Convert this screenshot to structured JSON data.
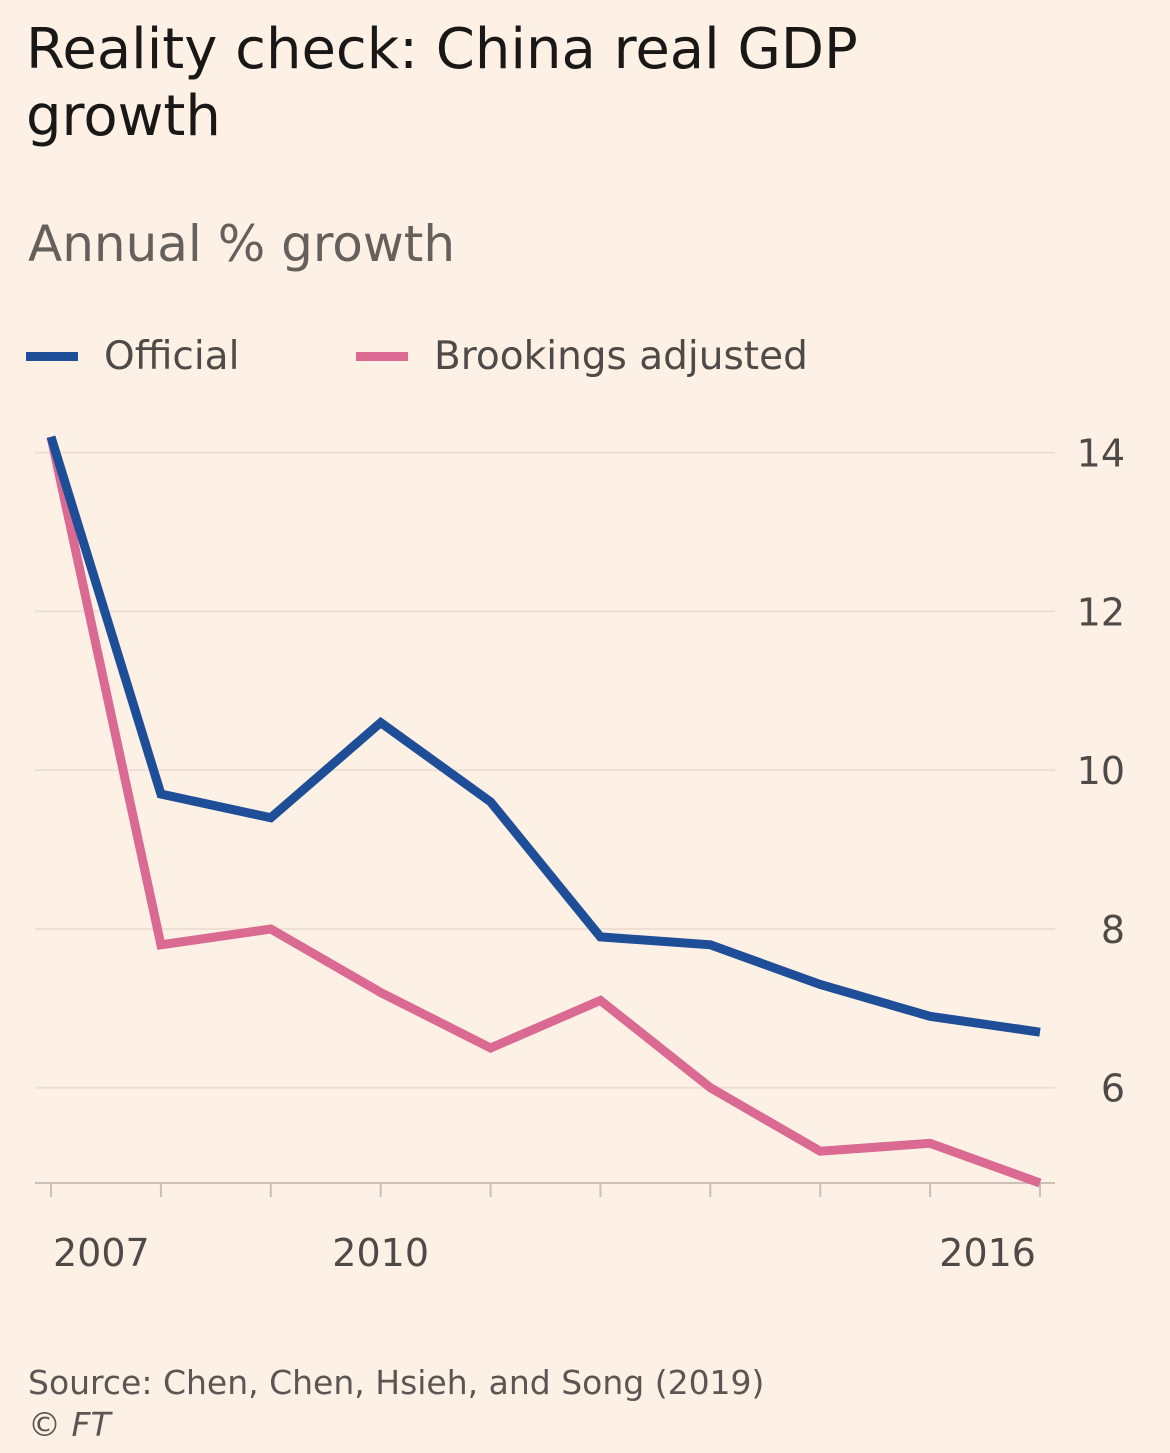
{
  "chart_data": {
    "type": "line",
    "title": "Reality check: China real GDP growth",
    "subtitle": "Annual % growth",
    "xlabel": "",
    "ylabel": "",
    "x": [
      2007,
      2008,
      2009,
      2010,
      2011,
      2012,
      2013,
      2014,
      2015,
      2016
    ],
    "x_tick_labels": [
      "2007",
      "2010",
      "2016"
    ],
    "x_tick_label_values": [
      2007,
      2010,
      2016
    ],
    "y_ticks": [
      6,
      8,
      10,
      12,
      14
    ],
    "y_tick_labels": [
      "6",
      "8",
      "10",
      "12",
      "14"
    ],
    "ylim": [
      4.8,
      14.6
    ],
    "xlim": [
      2007,
      2016
    ],
    "grid": true,
    "y_axis_side": "right",
    "legend_position": "top-left",
    "series": [
      {
        "name": "Official",
        "color": "#1f4e98",
        "values": [
          14.2,
          9.7,
          9.4,
          10.6,
          9.6,
          7.9,
          7.8,
          7.3,
          6.9,
          6.7
        ]
      },
      {
        "name": "Brookings adjusted",
        "color": "#db6a93",
        "values": [
          14.2,
          7.8,
          8.0,
          7.2,
          6.5,
          7.1,
          6.0,
          5.2,
          5.3,
          4.8
        ]
      }
    ]
  },
  "footer": {
    "source": "Source: Chen, Chen, Hsieh, and Song (2019)",
    "credit": "© FT"
  }
}
